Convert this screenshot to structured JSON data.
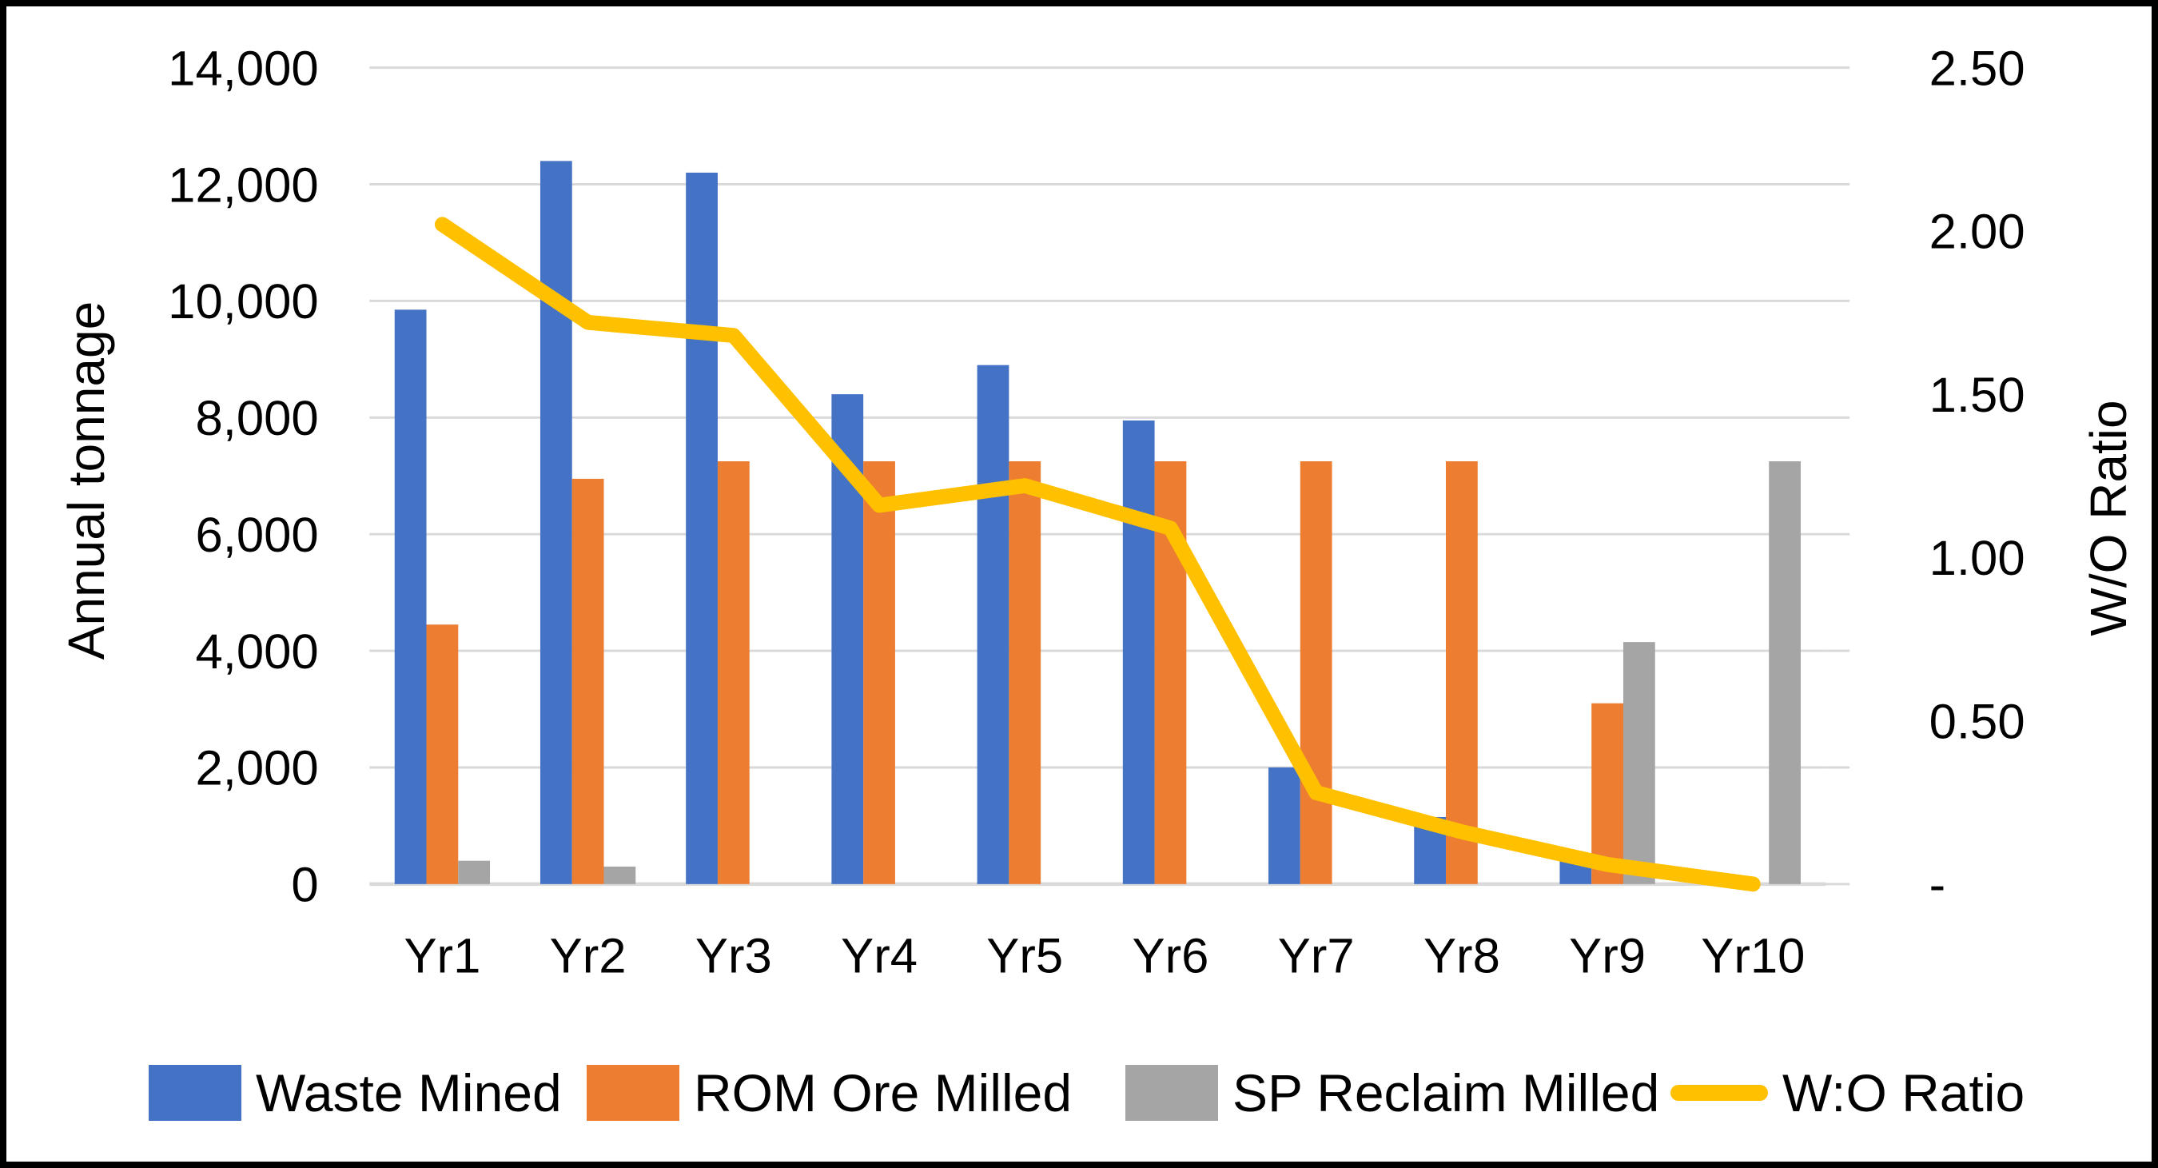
{
  "chart_data": {
    "type": "combo-bar-line",
    "title": "",
    "categories": [
      "Yr1",
      "Yr2",
      "Yr3",
      "Yr4",
      "Yr5",
      "Yr6",
      "Yr7",
      "Yr8",
      "Yr9",
      "Yr10"
    ],
    "series": [
      {
        "name": "Waste Mined",
        "type": "bar",
        "axis": "left",
        "color": "#4472C4",
        "values": [
          9850,
          12400,
          12200,
          8400,
          8900,
          7950,
          2000,
          1150,
          450,
          0
        ]
      },
      {
        "name": "ROM Ore Milled",
        "type": "bar",
        "axis": "left",
        "color": "#ED7D31",
        "values": [
          4450,
          6950,
          7250,
          7250,
          7250,
          7250,
          7250,
          7250,
          3100,
          0
        ]
      },
      {
        "name": "SP Reclaim Milled",
        "type": "bar",
        "axis": "left",
        "color": "#A5A5A5",
        "values": [
          400,
          300,
          0,
          0,
          0,
          0,
          0,
          0,
          4150,
          7250
        ]
      },
      {
        "name": "W:O Ratio",
        "type": "line",
        "axis": "right",
        "color": "#FFC000",
        "values": [
          2.02,
          1.72,
          1.68,
          1.16,
          1.22,
          1.09,
          0.28,
          0.16,
          0.06,
          0.0
        ]
      }
    ],
    "left_axis": {
      "title": "Annual tonnage",
      "min": 0,
      "max": 14000,
      "step": 2000,
      "tick_labels": [
        "0",
        "2,000",
        "4,000",
        "6,000",
        "8,000",
        "10,000",
        "12,000",
        "14,000"
      ]
    },
    "right_axis": {
      "title": "W/O Ratio",
      "min": 0,
      "max": 2.5,
      "step": 0.5,
      "tick_labels": [
        "-",
        "0.50",
        "1.00",
        "1.50",
        "2.00",
        "2.50"
      ]
    },
    "legend_position": "bottom",
    "grid": true,
    "gridline_color": "#D9D9D9",
    "background": "#FFFFFF",
    "border_color": "#000000"
  }
}
